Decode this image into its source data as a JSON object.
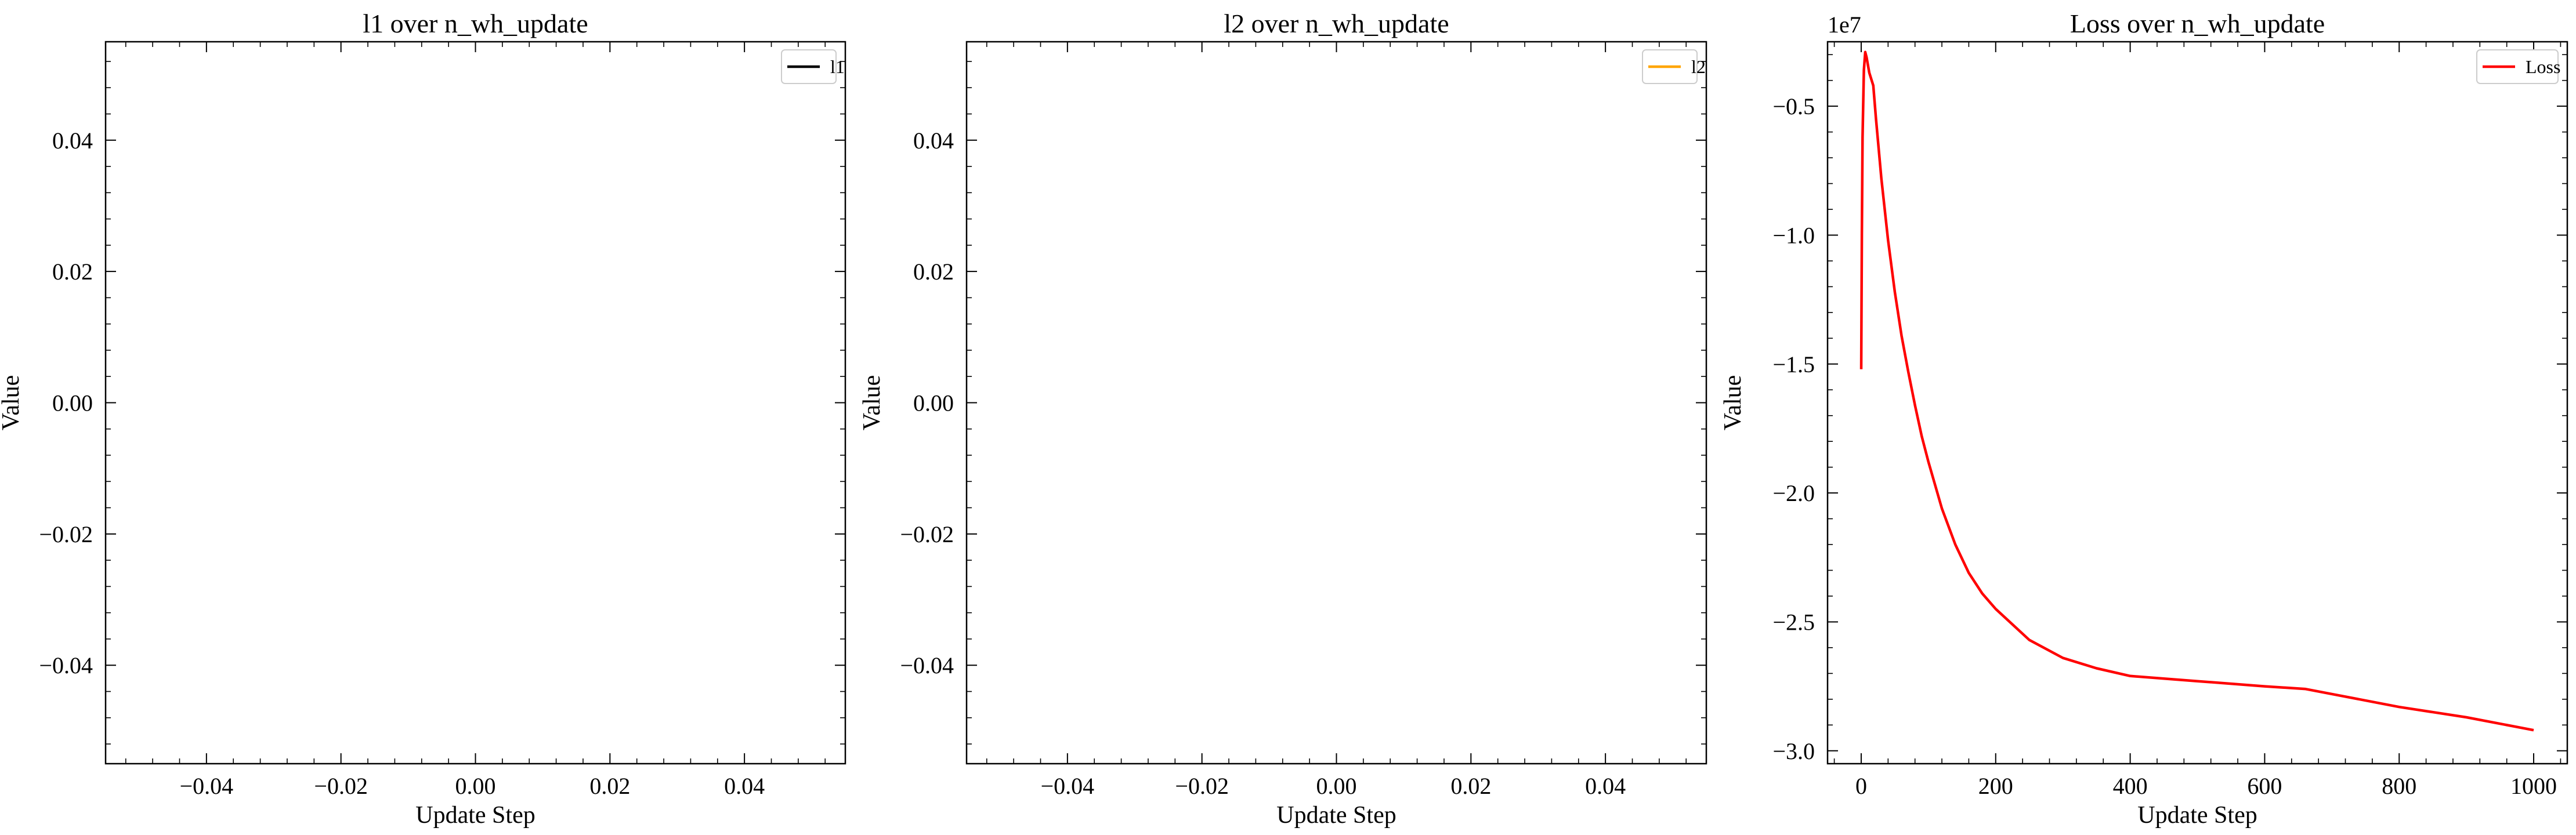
{
  "chart_data": [
    {
      "type": "line",
      "title": "l1 over n_wh_update",
      "xlabel": "Update Step",
      "ylabel": "Value",
      "xlim": [
        -0.055,
        0.055
      ],
      "ylim": [
        -0.055,
        0.055
      ],
      "xticks": [
        -0.04,
        -0.02,
        0.0,
        0.02,
        0.04
      ],
      "xtick_labels": [
        "−0.04",
        "−0.02",
        "0.00",
        "0.02",
        "0.04"
      ],
      "yticks": [
        -0.04,
        -0.02,
        0.0,
        0.02,
        0.04
      ],
      "ytick_labels": [
        "−0.04",
        "−0.02",
        "0.00",
        "0.02",
        "0.04"
      ],
      "offset_text": "",
      "legend_position": "upper right",
      "series": [
        {
          "name": "l1",
          "color": "#000000",
          "points": []
        }
      ]
    },
    {
      "type": "line",
      "title": "l2 over n_wh_update",
      "xlabel": "Update Step",
      "ylabel": "Value",
      "xlim": [
        -0.055,
        0.055
      ],
      "ylim": [
        -0.055,
        0.055
      ],
      "xticks": [
        -0.04,
        -0.02,
        0.0,
        0.02,
        0.04
      ],
      "xtick_labels": [
        "−0.04",
        "−0.02",
        "0.00",
        "0.02",
        "0.04"
      ],
      "yticks": [
        -0.04,
        -0.02,
        0.0,
        0.02,
        0.04
      ],
      "ytick_labels": [
        "−0.04",
        "−0.02",
        "0.00",
        "0.02",
        "0.04"
      ],
      "offset_text": "",
      "legend_position": "upper right",
      "series": [
        {
          "name": "l2",
          "color": "#ffa500",
          "points": []
        }
      ]
    },
    {
      "type": "line",
      "title": "Loss over n_wh_update",
      "xlabel": "Update Step",
      "ylabel": "Value",
      "xlim": [
        -50,
        1050
      ],
      "ylim": [
        -3.05,
        -0.25
      ],
      "xticks": [
        0,
        200,
        400,
        600,
        800,
        1000
      ],
      "xtick_labels": [
        "0",
        "200",
        "400",
        "600",
        "800",
        "1000"
      ],
      "yticks": [
        -0.5,
        -1.0,
        -1.5,
        -2.0,
        -2.5,
        -3.0
      ],
      "ytick_labels": [
        "−0.5",
        "−1.0",
        "−1.5",
        "−2.0",
        "−2.5",
        "−3.0"
      ],
      "offset_text": "1e7",
      "y_scale_factor": 10000000,
      "legend_position": "upper right",
      "series": [
        {
          "name": "Loss",
          "color": "#ff0000",
          "points": [
            [
              0,
              -1.52
            ],
            [
              1,
              -1.0
            ],
            [
              2,
              -0.62
            ],
            [
              4,
              -0.36
            ],
            [
              6,
              -0.29
            ],
            [
              8,
              -0.31
            ],
            [
              12,
              -0.37
            ],
            [
              18,
              -0.42
            ],
            [
              22,
              -0.55
            ],
            [
              30,
              -0.78
            ],
            [
              40,
              -1.02
            ],
            [
              50,
              -1.22
            ],
            [
              60,
              -1.39
            ],
            [
              70,
              -1.53
            ],
            [
              80,
              -1.66
            ],
            [
              90,
              -1.78
            ],
            [
              100,
              -1.88
            ],
            [
              120,
              -2.06
            ],
            [
              140,
              -2.2
            ],
            [
              160,
              -2.31
            ],
            [
              180,
              -2.39
            ],
            [
              200,
              -2.45
            ],
            [
              250,
              -2.57
            ],
            [
              300,
              -2.64
            ],
            [
              350,
              -2.68
            ],
            [
              400,
              -2.71
            ],
            [
              500,
              -2.73
            ],
            [
              600,
              -2.75
            ],
            [
              660,
              -2.76
            ],
            [
              700,
              -2.78
            ],
            [
              800,
              -2.83
            ],
            [
              900,
              -2.87
            ],
            [
              1000,
              -2.92
            ]
          ]
        }
      ]
    }
  ]
}
